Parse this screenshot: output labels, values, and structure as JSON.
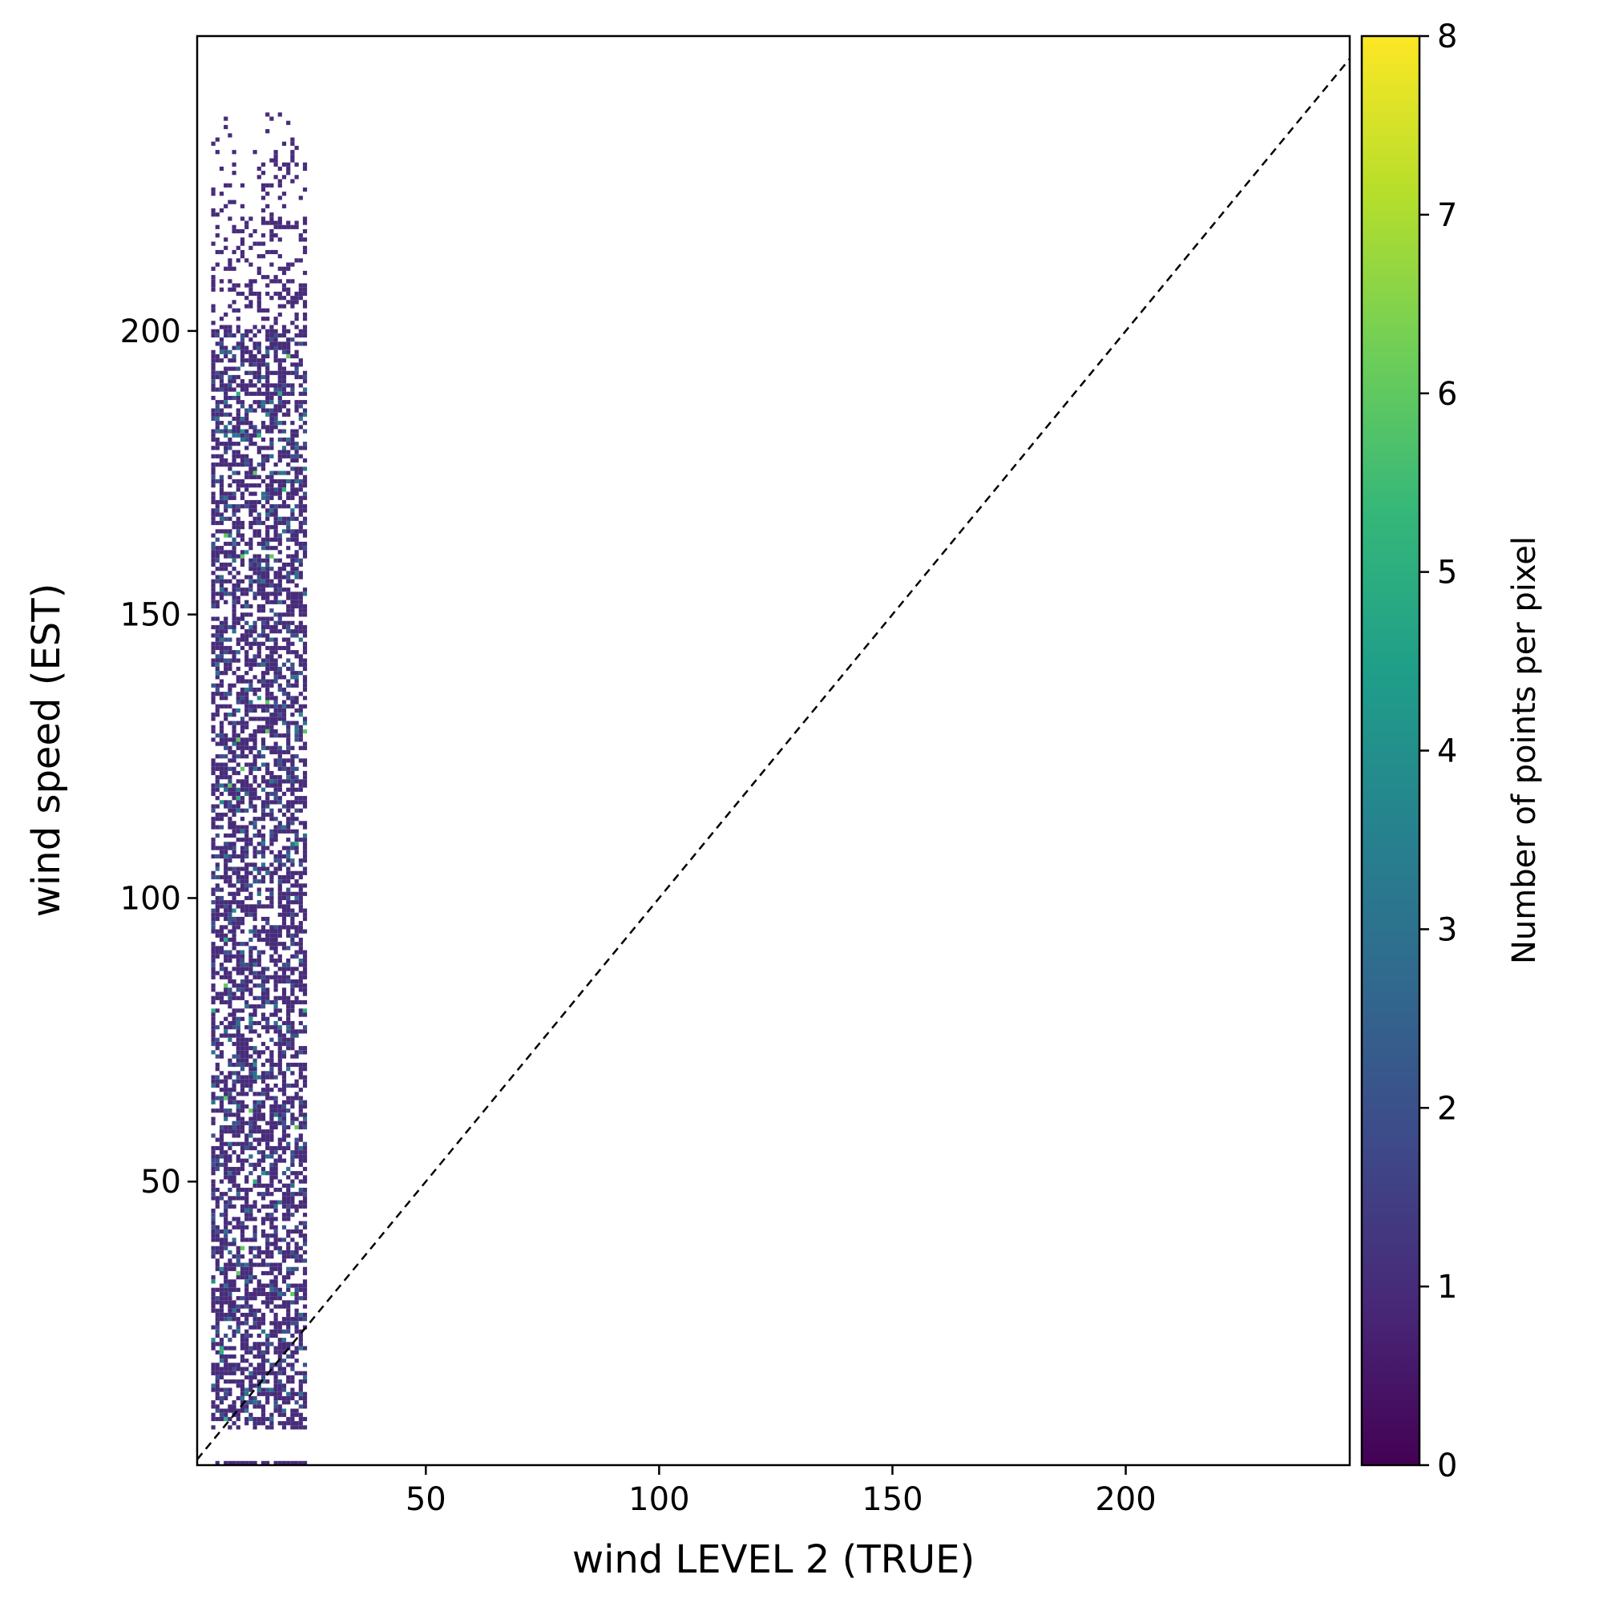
{
  "chart_data": {
    "type": "heatmap",
    "title": "",
    "xlabel": "wind LEVEL 2 (TRUE)",
    "ylabel": "wind speed (EST)",
    "xlim": [
      1,
      248
    ],
    "ylim": [
      0,
      252
    ],
    "x_ticks": [
      50,
      100,
      150,
      200
    ],
    "y_ticks": [
      50,
      100,
      150,
      200
    ],
    "grid": false,
    "reference_line": {
      "style": "dashed",
      "color": "#000000",
      "from": [
        1,
        1
      ],
      "to": [
        248,
        248
      ]
    },
    "colorbar": {
      "label": "Number of points per pixel",
      "min": 0,
      "max": 8,
      "ticks": [
        0,
        1,
        2,
        3,
        4,
        5,
        6,
        7,
        8
      ],
      "colormap": "viridis",
      "stops": [
        "#440154",
        "#482878",
        "#3e4989",
        "#31688e",
        "#26828e",
        "#1f9e89",
        "#35b779",
        "#6ece58",
        "#b5de2b",
        "#fde725"
      ]
    },
    "density": {
      "x_range": [
        4,
        24
      ],
      "y_range": [
        7,
        200
      ],
      "sparse_tail_y": [
        200,
        240
      ],
      "bottom_row_y": 0,
      "dominant_value": 1,
      "max_value": 8
    }
  }
}
